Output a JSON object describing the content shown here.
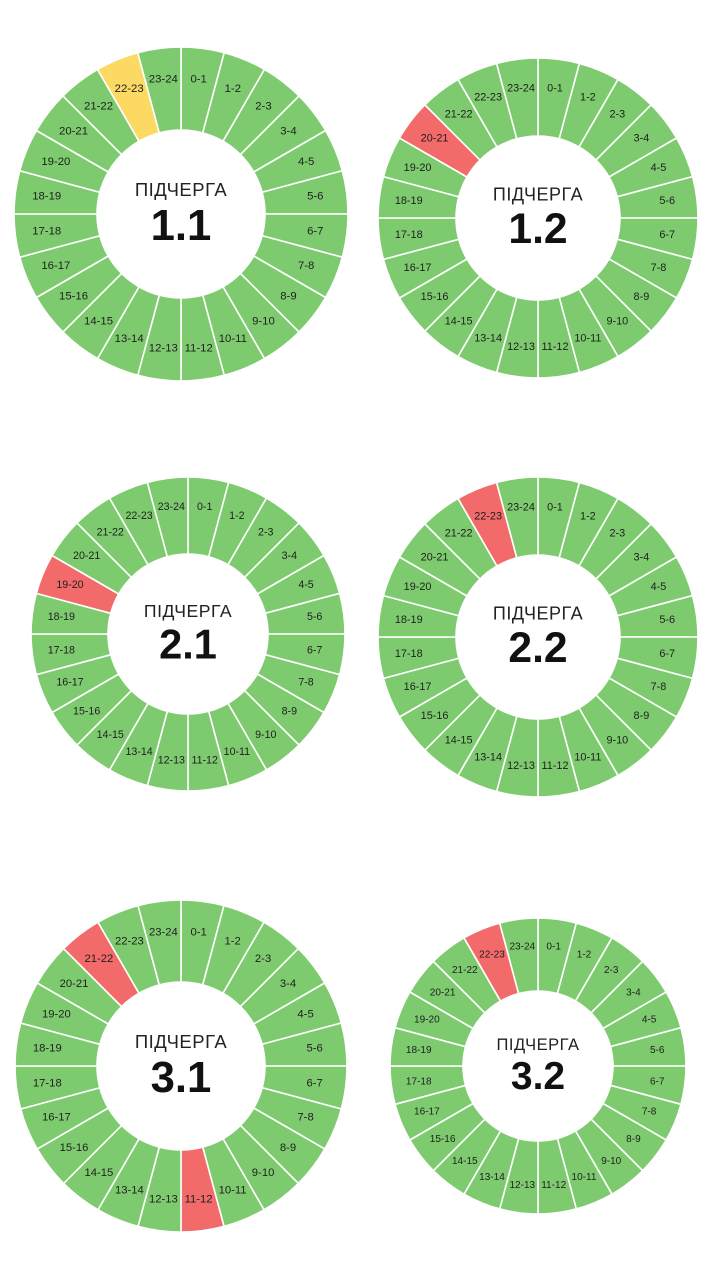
{
  "colors": {
    "on": "#7ecb6f",
    "off": "#f26a6a",
    "maybe": "#fbd962",
    "hole": "#ffffff"
  },
  "hour_labels": [
    "0-1",
    "1-2",
    "2-3",
    "3-4",
    "4-5",
    "5-6",
    "6-7",
    "7-8",
    "8-9",
    "9-10",
    "10-11",
    "11-12",
    "12-13",
    "13-14",
    "14-15",
    "15-16",
    "16-17",
    "17-18",
    "18-19",
    "19-20",
    "20-21",
    "21-22",
    "22-23",
    "23-24"
  ],
  "chart_data": [
    {
      "type": "pie",
      "subtitle": "ПІДЧЕРГА",
      "title": "1.1",
      "categories": [
        "0-1",
        "1-2",
        "2-3",
        "3-4",
        "4-5",
        "5-6",
        "6-7",
        "7-8",
        "8-9",
        "9-10",
        "10-11",
        "11-12",
        "12-13",
        "13-14",
        "14-15",
        "15-16",
        "16-17",
        "17-18",
        "18-19",
        "19-20",
        "20-21",
        "21-22",
        "22-23",
        "23-24"
      ],
      "values": [
        1,
        1,
        1,
        1,
        1,
        1,
        1,
        1,
        1,
        1,
        1,
        1,
        1,
        1,
        1,
        1,
        1,
        1,
        1,
        1,
        1,
        1,
        1,
        1
      ],
      "status": [
        "on",
        "on",
        "on",
        "on",
        "on",
        "on",
        "on",
        "on",
        "on",
        "on",
        "on",
        "on",
        "on",
        "on",
        "on",
        "on",
        "on",
        "on",
        "on",
        "on",
        "on",
        "on",
        "maybe",
        "on"
      ]
    },
    {
      "type": "pie",
      "subtitle": "ПІДЧЕРГА",
      "title": "1.2",
      "categories": [
        "0-1",
        "1-2",
        "2-3",
        "3-4",
        "4-5",
        "5-6",
        "6-7",
        "7-8",
        "8-9",
        "9-10",
        "10-11",
        "11-12",
        "12-13",
        "13-14",
        "14-15",
        "15-16",
        "16-17",
        "17-18",
        "18-19",
        "19-20",
        "20-21",
        "21-22",
        "22-23",
        "23-24"
      ],
      "values": [
        1,
        1,
        1,
        1,
        1,
        1,
        1,
        1,
        1,
        1,
        1,
        1,
        1,
        1,
        1,
        1,
        1,
        1,
        1,
        1,
        1,
        1,
        1,
        1
      ],
      "status": [
        "on",
        "on",
        "on",
        "on",
        "on",
        "on",
        "on",
        "on",
        "on",
        "on",
        "on",
        "on",
        "on",
        "on",
        "on",
        "on",
        "on",
        "on",
        "on",
        "on",
        "off",
        "on",
        "on",
        "on"
      ]
    },
    {
      "type": "pie",
      "subtitle": "ПІДЧЕРГА",
      "title": "2.1",
      "categories": [
        "0-1",
        "1-2",
        "2-3",
        "3-4",
        "4-5",
        "5-6",
        "6-7",
        "7-8",
        "8-9",
        "9-10",
        "10-11",
        "11-12",
        "12-13",
        "13-14",
        "14-15",
        "15-16",
        "16-17",
        "17-18",
        "18-19",
        "19-20",
        "20-21",
        "21-22",
        "22-23",
        "23-24"
      ],
      "values": [
        1,
        1,
        1,
        1,
        1,
        1,
        1,
        1,
        1,
        1,
        1,
        1,
        1,
        1,
        1,
        1,
        1,
        1,
        1,
        1,
        1,
        1,
        1,
        1
      ],
      "status": [
        "on",
        "on",
        "on",
        "on",
        "on",
        "on",
        "on",
        "on",
        "on",
        "on",
        "on",
        "on",
        "on",
        "on",
        "on",
        "on",
        "on",
        "on",
        "on",
        "off",
        "on",
        "on",
        "on",
        "on"
      ]
    },
    {
      "type": "pie",
      "subtitle": "ПІДЧЕРГА",
      "title": "2.2",
      "categories": [
        "0-1",
        "1-2",
        "2-3",
        "3-4",
        "4-5",
        "5-6",
        "6-7",
        "7-8",
        "8-9",
        "9-10",
        "10-11",
        "11-12",
        "12-13",
        "13-14",
        "14-15",
        "15-16",
        "16-17",
        "17-18",
        "18-19",
        "19-20",
        "20-21",
        "21-22",
        "22-23",
        "23-24"
      ],
      "values": [
        1,
        1,
        1,
        1,
        1,
        1,
        1,
        1,
        1,
        1,
        1,
        1,
        1,
        1,
        1,
        1,
        1,
        1,
        1,
        1,
        1,
        1,
        1,
        1
      ],
      "status": [
        "on",
        "on",
        "on",
        "on",
        "on",
        "on",
        "on",
        "on",
        "on",
        "on",
        "on",
        "on",
        "on",
        "on",
        "on",
        "on",
        "on",
        "on",
        "on",
        "on",
        "on",
        "on",
        "off",
        "on"
      ]
    },
    {
      "type": "pie",
      "subtitle": "ПІДЧЕРГА",
      "title": "3.1",
      "categories": [
        "0-1",
        "1-2",
        "2-3",
        "3-4",
        "4-5",
        "5-6",
        "6-7",
        "7-8",
        "8-9",
        "9-10",
        "10-11",
        "11-12",
        "12-13",
        "13-14",
        "14-15",
        "15-16",
        "16-17",
        "17-18",
        "18-19",
        "19-20",
        "20-21",
        "21-22",
        "22-23",
        "23-24"
      ],
      "values": [
        1,
        1,
        1,
        1,
        1,
        1,
        1,
        1,
        1,
        1,
        1,
        1,
        1,
        1,
        1,
        1,
        1,
        1,
        1,
        1,
        1,
        1,
        1,
        1
      ],
      "status": [
        "on",
        "on",
        "on",
        "on",
        "on",
        "on",
        "on",
        "on",
        "on",
        "on",
        "on",
        "off",
        "on",
        "on",
        "on",
        "on",
        "on",
        "on",
        "on",
        "on",
        "on",
        "off",
        "on",
        "on"
      ]
    },
    {
      "type": "pie",
      "subtitle": "ПІДЧЕРГА",
      "title": "3.2",
      "categories": [
        "0-1",
        "1-2",
        "2-3",
        "3-4",
        "4-5",
        "5-6",
        "6-7",
        "7-8",
        "8-9",
        "9-10",
        "10-11",
        "11-12",
        "12-13",
        "13-14",
        "14-15",
        "15-16",
        "16-17",
        "17-18",
        "18-19",
        "19-20",
        "20-21",
        "21-22",
        "22-23",
        "23-24"
      ],
      "values": [
        1,
        1,
        1,
        1,
        1,
        1,
        1,
        1,
        1,
        1,
        1,
        1,
        1,
        1,
        1,
        1,
        1,
        1,
        1,
        1,
        1,
        1,
        1,
        1
      ],
      "status": [
        "on",
        "on",
        "on",
        "on",
        "on",
        "on",
        "on",
        "on",
        "on",
        "on",
        "on",
        "on",
        "on",
        "on",
        "on",
        "on",
        "on",
        "on",
        "on",
        "on",
        "on",
        "on",
        "off",
        "on"
      ]
    }
  ]
}
